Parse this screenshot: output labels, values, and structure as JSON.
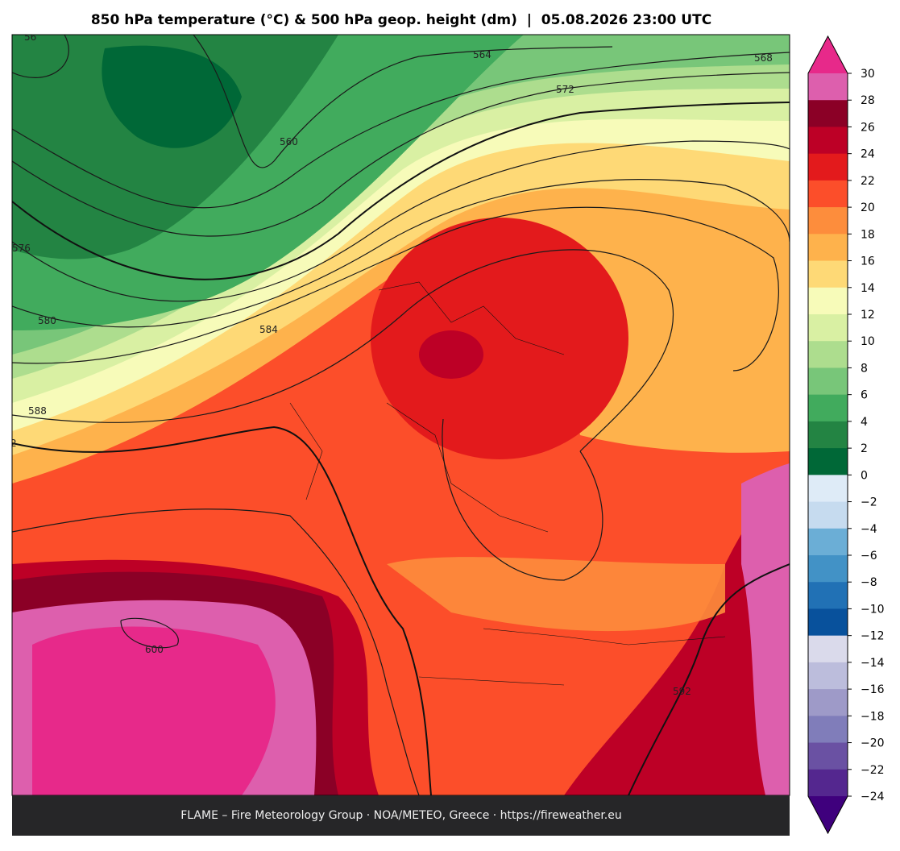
{
  "header": {
    "title": "850 hPa temperature (°C) & 500 hPa geop. height (dm)  |  05.08.2026 23:00 UTC"
  },
  "footer": {
    "text": "FLAME – Fire Meteorology Group · NOA/METEO, Greece · https://fireweather.eu"
  },
  "contour_labels": [
    "56",
    "564",
    "568",
    "572",
    "560",
    "576",
    "580",
    "584",
    "588",
    "2",
    "600",
    "592"
  ],
  "colorbar": {
    "ticks": [
      30,
      28,
      26,
      24,
      22,
      20,
      18,
      16,
      14,
      12,
      10,
      8,
      6,
      4,
      2,
      0,
      {
        "value": -2,
        "label": "−2"
      },
      {
        "value": -4,
        "label": "−4"
      },
      {
        "value": -6,
        "label": "−6"
      },
      {
        "value": -8,
        "label": "−8"
      },
      {
        "value": -10,
        "label": "−10"
      },
      {
        "value": -12,
        "label": "−12"
      },
      {
        "value": -14,
        "label": "−14"
      },
      {
        "value": -16,
        "label": "−16"
      },
      {
        "value": -18,
        "label": "−18"
      },
      {
        "value": -20,
        "label": "−20"
      },
      {
        "value": -22,
        "label": "−22"
      },
      {
        "value": -24,
        "label": "−24"
      }
    ],
    "colors": [
      "#dd5fad",
      "#8b0026",
      "#bd0026",
      "#e31a1c",
      "#fc4e2a",
      "#fd8d3c",
      "#feb24c",
      "#fed976",
      "#f7fbb9",
      "#d9f0a3",
      "#addd8e",
      "#78c679",
      "#41ab5d",
      "#238443",
      "#006837",
      "#deebf7",
      "#c6dbef",
      "#6baed6",
      "#4292c6",
      "#2171b5",
      "#08519c",
      "#dadaeb",
      "#bcbddc",
      "#9e9ac8",
      "#807dba",
      "#6a51a3",
      "#54278f"
    ],
    "over_color": "#e7298a",
    "under_color": "#3f007d"
  }
}
